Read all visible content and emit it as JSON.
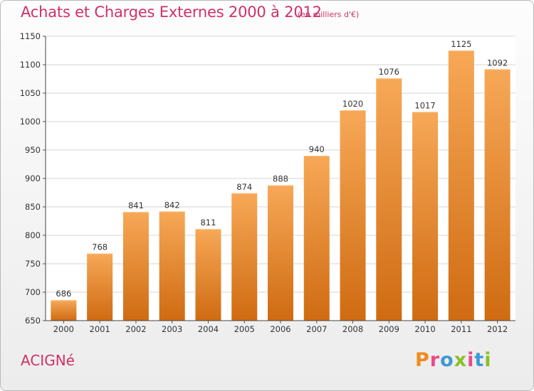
{
  "header": {
    "title": "Achats et Charges Externes 2000 à 2012",
    "subtitle": "(en milliers d'€)"
  },
  "footer": {
    "commune": "ACIGNé",
    "logo_letters": [
      "P",
      "r",
      "o",
      "x",
      "i",
      "t",
      "i"
    ]
  },
  "colors": {
    "title": "#d0306a",
    "bar_top": "#f7a857",
    "bar_bottom": "#cf6b12",
    "logo": [
      "#f08a1d",
      "#3e99d4",
      "#8cbf26",
      "#e94b8a"
    ]
  },
  "chart_data": {
    "type": "bar",
    "title": "Achats et Charges Externes 2000 à 2012",
    "subtitle": "(en milliers d'€)",
    "categories": [
      "2000",
      "2001",
      "2002",
      "2003",
      "2004",
      "2005",
      "2006",
      "2007",
      "2008",
      "2009",
      "2010",
      "2011",
      "2012"
    ],
    "values": [
      686,
      768,
      841,
      842,
      811,
      874,
      888,
      940,
      1020,
      1076,
      1017,
      1125,
      1092
    ],
    "ylim": [
      650,
      1150
    ],
    "yticks": [
      650,
      700,
      750,
      800,
      850,
      900,
      950,
      1000,
      1050,
      1100,
      1150
    ],
    "grid": true,
    "legend": "none"
  }
}
